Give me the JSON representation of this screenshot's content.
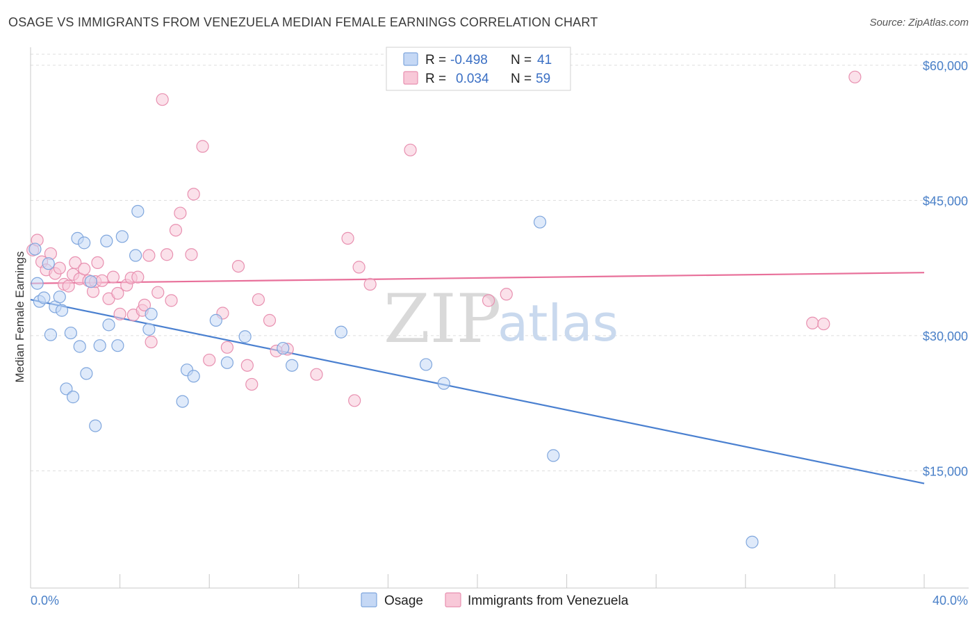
{
  "title": "OSAGE VS IMMIGRANTS FROM VENEZUELA MEDIAN FEMALE EARNINGS CORRELATION CHART",
  "source": "Source: ZipAtlas.com",
  "watermark": {
    "zip": "ZIP",
    "atlas": "atlas"
  },
  "colors": {
    "osage": "#4a80d0",
    "osage_fill": "#c5d8f5",
    "venezuela": "#e8709a",
    "venezuela_fill": "#f8c8d8",
    "axis_text": "#4a80c8",
    "grid": "#dddddd"
  },
  "legend": {
    "rows": [
      {
        "r_label": "R = ",
        "r_value": "-0.498",
        "n_label": "N = ",
        "n_value": "41"
      },
      {
        "r_label": "R = ",
        "r_value": "0.034",
        "n_label": "N = ",
        "n_value": "59"
      }
    ]
  },
  "chart_data": {
    "type": "scatter",
    "ylabel": "Median Female Earnings",
    "xlim": [
      0,
      40
    ],
    "ylim": [
      2000,
      62000
    ],
    "x_tick_labels": [
      "0.0%",
      "40.0%"
    ],
    "y_ticks": [
      15000,
      30000,
      45000,
      60000
    ],
    "y_tick_labels": [
      "$15,000",
      "$30,000",
      "$45,000",
      "$60,000"
    ],
    "series": [
      {
        "name": "Osage",
        "trend": {
          "x0": 0,
          "y0": 34000,
          "x1": 40,
          "y1": 13600
        },
        "points": [
          [
            0.2,
            39600
          ],
          [
            0.3,
            35800
          ],
          [
            0.4,
            33800
          ],
          [
            0.6,
            34200
          ],
          [
            0.8,
            38000
          ],
          [
            0.9,
            30100
          ],
          [
            1.1,
            33200
          ],
          [
            1.3,
            34300
          ],
          [
            1.4,
            32800
          ],
          [
            1.6,
            24100
          ],
          [
            1.8,
            30300
          ],
          [
            1.9,
            23200
          ],
          [
            2.1,
            40800
          ],
          [
            2.2,
            28800
          ],
          [
            2.4,
            40300
          ],
          [
            2.5,
            25800
          ],
          [
            2.7,
            36000
          ],
          [
            2.9,
            20000
          ],
          [
            3.1,
            28900
          ],
          [
            3.4,
            40500
          ],
          [
            3.5,
            31200
          ],
          [
            3.9,
            28900
          ],
          [
            4.1,
            41000
          ],
          [
            4.7,
            38900
          ],
          [
            4.8,
            43800
          ],
          [
            5.3,
            30700
          ],
          [
            5.4,
            32400
          ],
          [
            6.8,
            22700
          ],
          [
            7.0,
            26200
          ],
          [
            7.3,
            25500
          ],
          [
            8.3,
            31700
          ],
          [
            8.8,
            27000
          ],
          [
            9.6,
            29900
          ],
          [
            11.3,
            28600
          ],
          [
            11.7,
            26700
          ],
          [
            13.9,
            30400
          ],
          [
            17.7,
            26800
          ],
          [
            18.5,
            24700
          ],
          [
            22.8,
            42600
          ],
          [
            23.4,
            16700
          ],
          [
            32.3,
            7100
          ]
        ]
      },
      {
        "name": "Immigrants from Venezuela",
        "trend": {
          "x0": 0,
          "y0": 35800,
          "x1": 40,
          "y1": 37000
        },
        "points": [
          [
            0.1,
            39500
          ],
          [
            0.3,
            40600
          ],
          [
            0.5,
            38200
          ],
          [
            0.7,
            37300
          ],
          [
            0.9,
            39100
          ],
          [
            1.1,
            36900
          ],
          [
            1.3,
            37500
          ],
          [
            1.5,
            35700
          ],
          [
            1.7,
            35500
          ],
          [
            1.9,
            36800
          ],
          [
            2.0,
            38100
          ],
          [
            2.2,
            36300
          ],
          [
            2.4,
            37400
          ],
          [
            2.6,
            36100
          ],
          [
            2.8,
            34900
          ],
          [
            2.9,
            36000
          ],
          [
            3.0,
            38100
          ],
          [
            3.2,
            36100
          ],
          [
            3.5,
            34100
          ],
          [
            3.7,
            36500
          ],
          [
            3.9,
            34700
          ],
          [
            4.0,
            32400
          ],
          [
            4.3,
            35600
          ],
          [
            4.5,
            36400
          ],
          [
            4.6,
            32300
          ],
          [
            4.8,
            36500
          ],
          [
            5.0,
            32800
          ],
          [
            5.1,
            33400
          ],
          [
            5.3,
            38900
          ],
          [
            5.4,
            29300
          ],
          [
            5.7,
            34800
          ],
          [
            5.9,
            56200
          ],
          [
            6.1,
            39000
          ],
          [
            6.3,
            33900
          ],
          [
            6.5,
            41700
          ],
          [
            6.7,
            43600
          ],
          [
            7.2,
            39000
          ],
          [
            7.3,
            45700
          ],
          [
            7.7,
            51000
          ],
          [
            8.0,
            27300
          ],
          [
            8.6,
            32500
          ],
          [
            8.8,
            28700
          ],
          [
            9.3,
            37700
          ],
          [
            9.7,
            26700
          ],
          [
            9.9,
            24600
          ],
          [
            10.2,
            34000
          ],
          [
            10.7,
            31700
          ],
          [
            11.0,
            28300
          ],
          [
            11.5,
            28500
          ],
          [
            12.8,
            25700
          ],
          [
            14.2,
            40800
          ],
          [
            14.5,
            22800
          ],
          [
            14.7,
            37600
          ],
          [
            15.2,
            35700
          ],
          [
            17.0,
            50600
          ],
          [
            20.5,
            33900
          ],
          [
            21.3,
            34600
          ],
          [
            35.0,
            31400
          ],
          [
            35.5,
            31300
          ],
          [
            36.9,
            58700
          ]
        ]
      }
    ]
  }
}
